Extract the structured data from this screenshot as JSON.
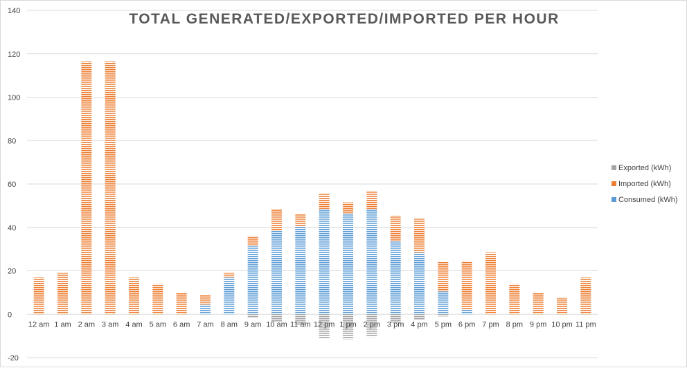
{
  "chart_data": {
    "type": "bar",
    "stacked": true,
    "title": "TOTAL GENERATED/EXPORTED/IMPORTED PER HOUR",
    "xlabel": "",
    "ylabel": "",
    "ylim": [
      -20,
      140
    ],
    "yticks": [
      -20,
      0,
      20,
      40,
      60,
      80,
      100,
      120,
      140
    ],
    "grid": true,
    "legend_position": "right",
    "categories": [
      "12 am",
      "1 am",
      "2 am",
      "3 am",
      "4 am",
      "5 am",
      "6 am",
      "7 am",
      "8 am",
      "9 am",
      "10 am",
      "11 am",
      "12 pm",
      "1 pm",
      "2 pm",
      "3 pm",
      "4 pm",
      "5 pm",
      "6 pm",
      "7 pm",
      "8 pm",
      "9 pm",
      "10 pm",
      "11 pm"
    ],
    "series": [
      {
        "name": "Consumed (kWh)",
        "color": "#5b9bd5",
        "values": [
          0,
          0,
          0,
          0,
          0,
          0,
          0,
          4.5,
          17,
          31.5,
          38.5,
          40.5,
          48.5,
          46.5,
          48.5,
          33.5,
          28.5,
          10.5,
          2,
          0,
          0,
          0,
          0,
          0
        ]
      },
      {
        "name": "Imported (kWh)",
        "color": "#ed7d31",
        "values": [
          17,
          19,
          116.5,
          116.5,
          17,
          14,
          10,
          4.5,
          2,
          4.5,
          10,
          5.5,
          7,
          5,
          8,
          12,
          15.5,
          13.5,
          22.5,
          28.5,
          14,
          10,
          7.5,
          17
        ]
      },
      {
        "name": "Exported (kWh)",
        "color": "#a5a5a5",
        "values": [
          0,
          0,
          0,
          0,
          0,
          0,
          0,
          0,
          0,
          -1.5,
          -3.5,
          -5,
          -11,
          -11.5,
          -10.5,
          -4,
          -2.5,
          -1,
          0,
          0,
          0,
          0,
          0,
          0
        ]
      }
    ],
    "legend_order": [
      "Exported (kWh)",
      "Imported (kWh)",
      "Consumed (kWh)"
    ]
  }
}
